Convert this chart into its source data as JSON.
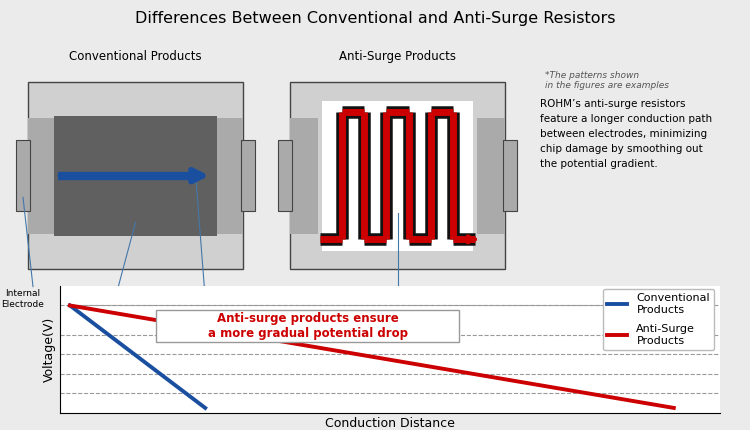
{
  "title": "Differences Between Conventional and Anti-Surge Resistors",
  "title_fontsize": 11.5,
  "bg_color": "#ebebeb",
  "conv_label": "Conventional Products",
  "anti_label": "Anti-Surge Products",
  "note_text": "*The patterns shown\nin the figures are examples",
  "desc_text": "ROHM’s anti-surge resistors\nfeature a longer conduction path\nbetween electrodes, minimizing\nchip damage by smoothing out\nthe potential gradient.",
  "annotation_text": "Anti-surge products ensure\na more gradual potential drop",
  "xlabel": "Conduction Distance",
  "ylabel": "Voltage(V)",
  "legend_conventional": "Conventional\nProducts",
  "legend_antisurge": "Anti-Surge\nProducts",
  "conv_color": "#1a4fa0",
  "anti_color": "#cc0000",
  "grid_color": "#999999",
  "body_light": "#d0d0d0",
  "body_mid": "#aaaaaa",
  "body_dark": "#606060",
  "resistor_outline": "#444444",
  "meander_black": "#111111",
  "meander_red": "#cc0000",
  "arrow_color": "#1a4fa0",
  "annotation_bg": "#ffffff",
  "annotation_text_color": "#cc0000",
  "annotation_border": "#999999",
  "label_line_color": "#4477aa"
}
